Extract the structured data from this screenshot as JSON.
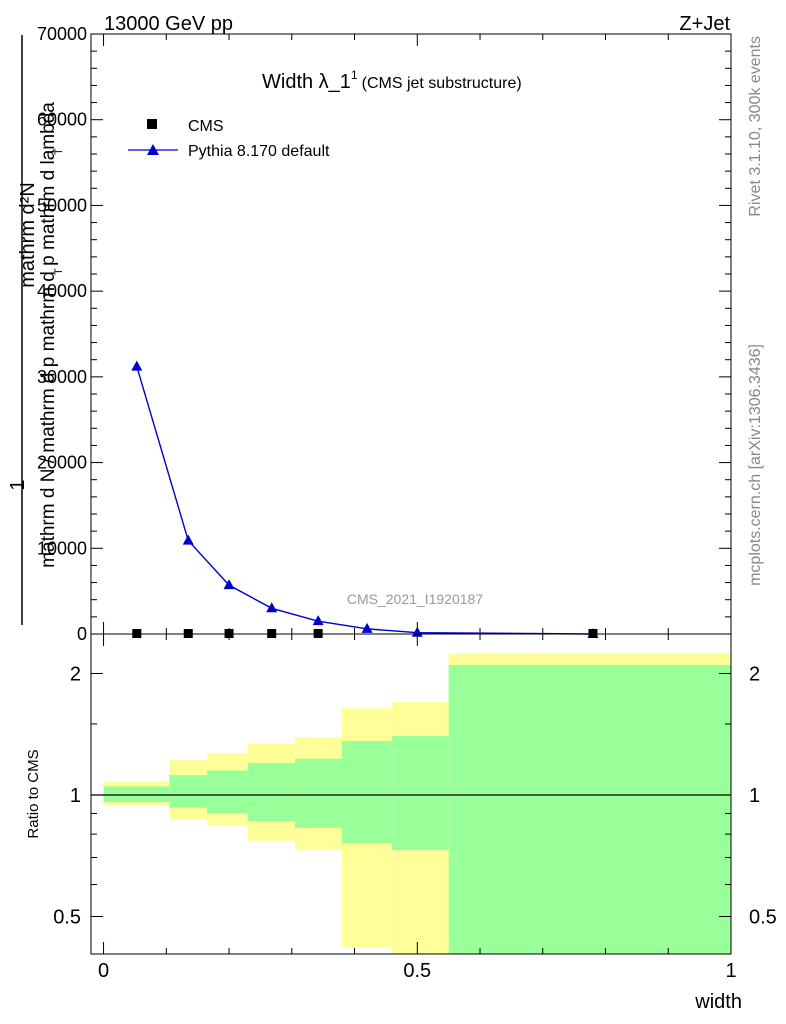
{
  "header": {
    "left": "13000 GeV pp",
    "right": "Z+Jet"
  },
  "side_labels": {
    "rivet": "Rivet 3.1.10,  300k events",
    "mcplots": "mcplots.cern.ch [arXiv:1306.3436]"
  },
  "watermark": "CMS_2021_I1920187",
  "chart_data": [
    {
      "type": "line",
      "panel": "main",
      "title": "Width λ_1",
      "title_sup": "1",
      "subtitle": "(CMS jet substructure)",
      "ylabel_numerator": "mathrm d²N",
      "ylabel_frac_top": "1",
      "ylabel_sub1": "T",
      "ylabel_sub2": "T",
      "ylabel_denominator": "mathrm d N / mathrm d p  mathrm d p  mathrm d lambda",
      "ylim": [
        0,
        70000
      ],
      "yticks": [
        0,
        10000,
        20000,
        30000,
        40000,
        50000,
        60000,
        70000
      ],
      "ytick_labels": [
        "0",
        "10000",
        "20000",
        "30000",
        "40000",
        "50000",
        "60000",
        "70000"
      ],
      "xlim": [
        -0.02,
        1.0
      ],
      "legend": {
        "placement": "top-left"
      },
      "series": [
        {
          "name": "CMS",
          "marker": "square",
          "color": "#000000",
          "x": [
            0.053,
            0.135,
            0.2,
            0.268,
            0.342,
            0.78
          ],
          "y": [
            0,
            0,
            0,
            0,
            0,
            0
          ]
        },
        {
          "name": "Pythia 8.170 default",
          "marker": "triangle",
          "color": "#0000cc",
          "x": [
            0.053,
            0.135,
            0.2,
            0.268,
            0.342,
            0.42,
            0.5,
            0.78
          ],
          "y": [
            31200,
            10900,
            5700,
            3000,
            1500,
            600,
            150,
            0
          ]
        }
      ]
    },
    {
      "type": "area",
      "panel": "ratio",
      "ylabel": "Ratio to CMS",
      "ylim": [
        0.35,
        2.25
      ],
      "yticks": [
        0.5,
        1,
        2
      ],
      "ytick_labels": [
        "0.5",
        "1",
        "2"
      ],
      "xlim": [
        -0.02,
        1.0
      ],
      "xticks": [
        0,
        0.5,
        1
      ],
      "xtick_labels": [
        "0",
        "0.5",
        "1"
      ],
      "xlabel": "width",
      "reference_line": 1,
      "bins": [
        {
          "x0": 0.0,
          "x1": 0.105,
          "green": [
            0.96,
            1.05
          ],
          "yellow": [
            0.94,
            1.08
          ]
        },
        {
          "x0": 0.105,
          "x1": 0.165,
          "green": [
            0.93,
            1.12
          ],
          "yellow": [
            0.87,
            1.22
          ]
        },
        {
          "x0": 0.165,
          "x1": 0.23,
          "green": [
            0.9,
            1.15
          ],
          "yellow": [
            0.84,
            1.27
          ]
        },
        {
          "x0": 0.23,
          "x1": 0.305,
          "green": [
            0.86,
            1.2
          ],
          "yellow": [
            0.77,
            1.34
          ]
        },
        {
          "x0": 0.305,
          "x1": 0.38,
          "green": [
            0.83,
            1.23
          ],
          "yellow": [
            0.73,
            1.39
          ]
        },
        {
          "x0": 0.38,
          "x1": 0.46,
          "green": [
            0.76,
            1.36
          ],
          "yellow": [
            0.42,
            1.64
          ]
        },
        {
          "x0": 0.46,
          "x1": 0.55,
          "green": [
            0.73,
            1.4
          ],
          "yellow": [
            0.35,
            1.7
          ]
        },
        {
          "x0": 0.55,
          "x1": 1.0,
          "green": [
            0.35,
            2.1
          ],
          "yellow": [
            0.35,
            2.25
          ]
        }
      ],
      "colors": {
        "green": "#99ff99",
        "yellow": "#ffff99"
      }
    }
  ]
}
